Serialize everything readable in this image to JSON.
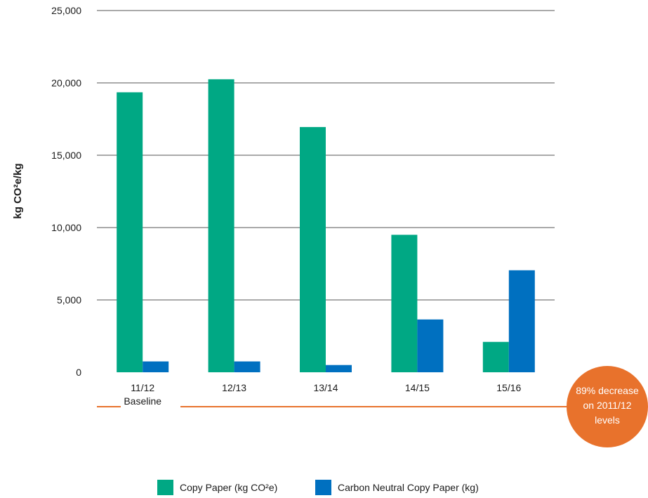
{
  "colors": {
    "copy_paper": "#00a884",
    "carbon_neutral": "#0070c0",
    "accent": "#e8722c",
    "grid": "#555555"
  },
  "chart_data": {
    "type": "bar",
    "categories": [
      "11/12",
      "12/13",
      "13/14",
      "14/15",
      "15/16"
    ],
    "category_sublabels": [
      "Baseline",
      "",
      "",
      "",
      ""
    ],
    "series": [
      {
        "name": "Copy Paper (kg CO²e)",
        "values": [
          19350,
          20250,
          16950,
          9500,
          2100
        ]
      },
      {
        "name": "Carbon Neutral Copy Paper (kg)",
        "values": [
          750,
          750,
          500,
          3650,
          7050
        ]
      }
    ],
    "ylabel": "kg CO²e/kg",
    "ylim": [
      0,
      25000
    ],
    "yticks": [
      0,
      5000,
      10000,
      15000,
      20000,
      25000
    ],
    "ytick_labels": [
      "0",
      "5,000",
      "10,000",
      "15,000",
      "20,000",
      "25,000"
    ],
    "grid": true,
    "legend_position": "bottom",
    "annotation": {
      "lines": [
        "89% decrease",
        "on 2011/12",
        "levels"
      ]
    }
  }
}
